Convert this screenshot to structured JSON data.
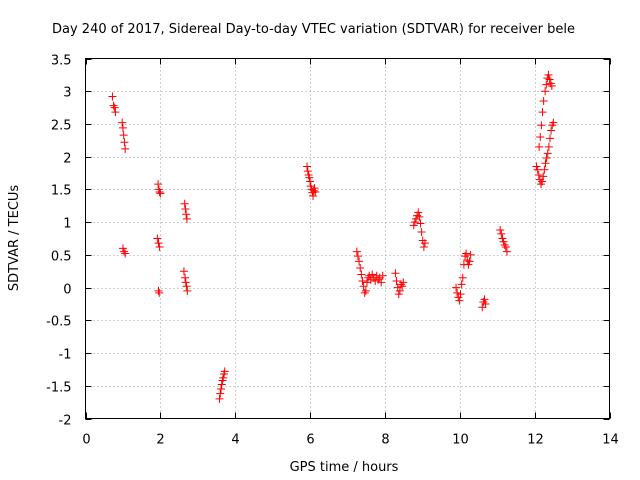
{
  "chart_data": {
    "type": "scatter",
    "title": "Day 240 of 2017, Sidereal Day-to-day VTEC variation (SDTVAR) for receiver bele",
    "xlabel": "GPS time / hours",
    "ylabel": "SDTVAR / TECUs",
    "xlim": [
      0,
      14
    ],
    "ylim": [
      -2,
      3.5
    ],
    "xticks": [
      0,
      2,
      4,
      6,
      8,
      10,
      12,
      14
    ],
    "xtick_labels": [
      "0",
      "2",
      "4",
      "6",
      "8",
      "10",
      "12",
      "14"
    ],
    "yticks": [
      -2,
      -1.5,
      -1,
      -0.5,
      0,
      0.5,
      1,
      1.5,
      2,
      2.5,
      3,
      3.5
    ],
    "ytick_labels": [
      "-2",
      "-1.5",
      "-1",
      "-0.5",
      "0",
      "0.5",
      "1",
      "1.5",
      "2",
      "2.5",
      "3",
      "3.5"
    ],
    "grid": true,
    "marker": "+",
    "color": "#ff0000",
    "series": [
      {
        "name": "SDTVAR",
        "x": [
          0.72,
          0.75,
          0.78,
          0.8,
          0.98,
          1.0,
          1.02,
          1.04,
          1.06,
          1.0,
          1.03,
          1.06,
          1.94,
          1.96,
          1.98,
          2.0,
          1.92,
          1.95,
          1.98,
          1.95,
          1.97,
          2.65,
          2.67,
          2.69,
          2.71,
          2.63,
          2.66,
          2.68,
          2.7,
          2.72,
          3.58,
          3.6,
          3.62,
          3.64,
          3.66,
          3.68,
          3.7,
          3.72,
          5.92,
          5.94,
          5.96,
          5.98,
          6.0,
          6.02,
          6.04,
          6.06,
          6.08,
          6.1,
          6.12,
          6.14,
          7.25,
          7.28,
          7.31,
          7.34,
          7.37,
          7.4,
          7.43,
          7.46,
          7.49,
          7.52,
          7.55,
          7.58,
          7.62,
          7.66,
          7.7,
          7.74,
          7.78,
          7.82,
          7.86,
          7.9,
          7.94,
          8.28,
          8.31,
          8.34,
          8.37,
          8.4,
          8.43,
          8.46,
          8.49,
          8.77,
          8.8,
          8.83,
          8.86,
          8.89,
          8.92,
          8.95,
          8.98,
          9.01,
          9.04,
          9.07,
          9.9,
          9.93,
          9.96,
          9.99,
          10.02,
          10.05,
          10.08,
          10.11,
          10.14,
          10.17,
          10.2,
          10.23,
          10.26,
          10.29,
          10.6,
          10.63,
          10.66,
          10.69,
          11.08,
          11.11,
          11.14,
          11.17,
          11.2,
          11.23,
          11.26,
          12.05,
          12.08,
          12.11,
          12.14,
          12.17,
          12.2,
          12.23,
          12.26,
          12.29,
          12.32,
          12.35,
          12.38,
          12.41,
          12.44,
          12.47,
          12.5,
          12.12,
          12.15,
          12.18,
          12.21,
          12.24,
          12.28,
          12.31,
          12.34,
          12.37,
          12.4,
          12.43,
          12.46
        ],
        "y": [
          2.92,
          2.78,
          2.75,
          2.68,
          2.52,
          2.44,
          2.33,
          2.22,
          2.12,
          0.6,
          0.55,
          0.52,
          1.58,
          1.5,
          1.46,
          1.44,
          0.75,
          0.68,
          0.62,
          -0.05,
          -0.08,
          1.28,
          1.2,
          1.12,
          1.05,
          0.25,
          0.15,
          0.08,
          0.02,
          -0.05,
          -1.7,
          -1.62,
          -1.55,
          -1.48,
          -1.42,
          -1.38,
          -1.32,
          -1.28,
          1.85,
          1.78,
          1.72,
          1.68,
          1.62,
          1.55,
          1.5,
          1.45,
          1.4,
          1.48,
          1.52,
          1.46,
          0.55,
          0.48,
          0.4,
          0.3,
          0.2,
          0.1,
          0.02,
          -0.08,
          -0.05,
          0.08,
          0.15,
          0.18,
          0.12,
          0.2,
          0.15,
          0.1,
          0.18,
          0.12,
          0.15,
          0.08,
          0.18,
          0.22,
          0.1,
          0.0,
          -0.1,
          -0.05,
          0.05,
          0.02,
          0.08,
          0.95,
          1.0,
          1.05,
          1.1,
          1.15,
          1.08,
          0.98,
          0.85,
          0.72,
          0.62,
          0.68,
          0.0,
          -0.08,
          -0.15,
          -0.2,
          -0.1,
          0.05,
          0.15,
          0.35,
          0.48,
          0.52,
          0.42,
          0.35,
          0.4,
          0.5,
          -0.3,
          -0.22,
          -0.18,
          -0.25,
          0.88,
          0.82,
          0.75,
          0.7,
          0.65,
          0.62,
          0.55,
          1.85,
          1.8,
          1.72,
          1.65,
          1.58,
          1.62,
          1.7,
          1.8,
          1.9,
          1.98,
          2.05,
          2.15,
          2.28,
          2.4,
          2.48,
          2.52,
          2.15,
          2.3,
          2.48,
          2.68,
          2.85,
          3.0,
          3.1,
          3.2,
          3.25,
          3.18,
          3.12,
          3.08
        ]
      }
    ]
  }
}
